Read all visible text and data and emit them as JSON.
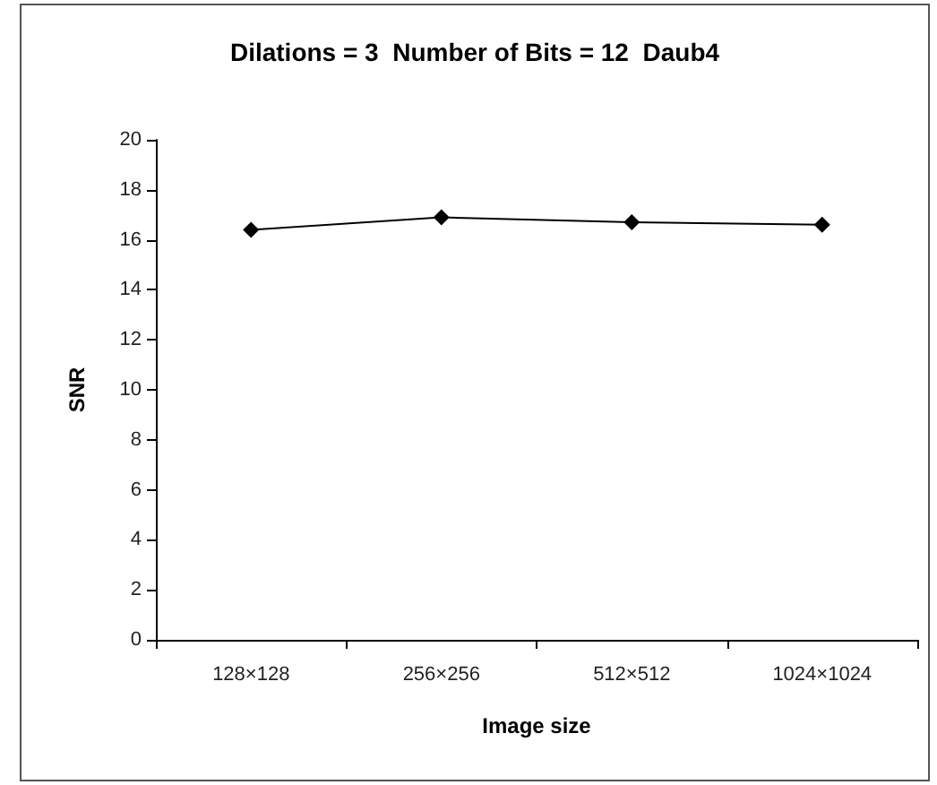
{
  "chart_data": {
    "type": "line",
    "title": "Dilations = 3  Number of Bits = 12  Daub4",
    "xlabel": "Image size",
    "ylabel": "SNR",
    "categories": [
      "128×128",
      "256×256",
      "512×512",
      "1024×1024"
    ],
    "series": [
      {
        "color": "#000000",
        "values": [
          16.4,
          16.9,
          16.7,
          16.6
        ]
      }
    ],
    "ylim": [
      0,
      20
    ],
    "yticks": [
      0,
      2,
      4,
      6,
      8,
      10,
      12,
      14,
      16,
      18,
      20
    ],
    "marker": "diamond",
    "line_style": "solid"
  }
}
